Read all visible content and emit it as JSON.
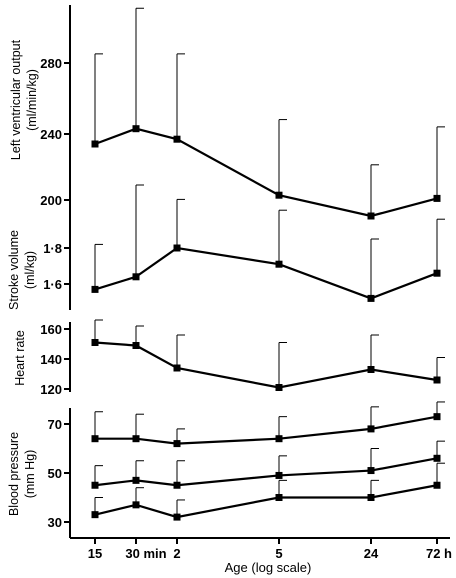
{
  "chart_data": {
    "type": "line",
    "xlabel": "Age (log scale)",
    "x_scale": "log",
    "x_tick_labels": [
      "15",
      "30 min",
      "2",
      "5",
      "24",
      "72 h"
    ],
    "panels": [
      {
        "ylabel": "Left ventricular output (ml/min/kg)",
        "ylabel_lines": [
          "Left ventricular output",
          "(ml/min/kg)"
        ],
        "yticks": [
          "200",
          "240",
          "280"
        ],
        "ylim": [
          200,
          310
        ],
        "series": [
          {
            "values": [
              235,
              244,
              238,
              203,
              190,
              201
            ],
            "error_upper": [
              285,
              310,
              285,
              249,
              222,
              245
            ]
          }
        ]
      },
      {
        "ylabel": "Stroke volume (ml/kg)",
        "ylabel_lines": [
          "Stroke volume",
          "(ml/kg)"
        ],
        "yticks": [
          "1·6",
          "1·8"
        ],
        "ylim": [
          1.5,
          1.9
        ],
        "series": [
          {
            "values": [
              1.57,
              1.64,
              1.8,
              1.71,
              1.52,
              1.66
            ],
            "error_upper": [
              1.82,
              2.15,
              2.07,
              2.01,
              1.85,
              1.96
            ]
          }
        ]
      },
      {
        "ylabel": "Heart rate",
        "ylabel_lines": [
          "Heart rate"
        ],
        "yticks": [
          "120",
          "140",
          "160"
        ],
        "ylim": [
          115,
          165
        ],
        "series": [
          {
            "values": [
              151,
              149,
              134,
              121,
              133,
              126
            ],
            "error_upper": [
              166,
              162,
              156,
              151,
              156,
              141
            ]
          }
        ]
      },
      {
        "ylabel": "Blood pressure (mm Hg)",
        "ylabel_lines": [
          "Blood pressure",
          "(mm Hg)"
        ],
        "yticks": [
          "30",
          "50",
          "70"
        ],
        "ylim": [
          30,
          75
        ],
        "series": [
          {
            "values": [
              64,
              64,
              62,
              64,
              68,
              73
            ],
            "error_upper": [
              75,
              74,
              68,
              73,
              77,
              79
            ]
          },
          {
            "values": [
              45,
              47,
              45,
              49,
              51,
              56
            ],
            "error_upper": [
              53,
              55,
              55,
              57,
              60,
              63
            ]
          },
          {
            "values": [
              33,
              37,
              32,
              40,
              40,
              45
            ],
            "error_upper": [
              40,
              44,
              39,
              47,
              47,
              54
            ]
          }
        ]
      }
    ]
  }
}
